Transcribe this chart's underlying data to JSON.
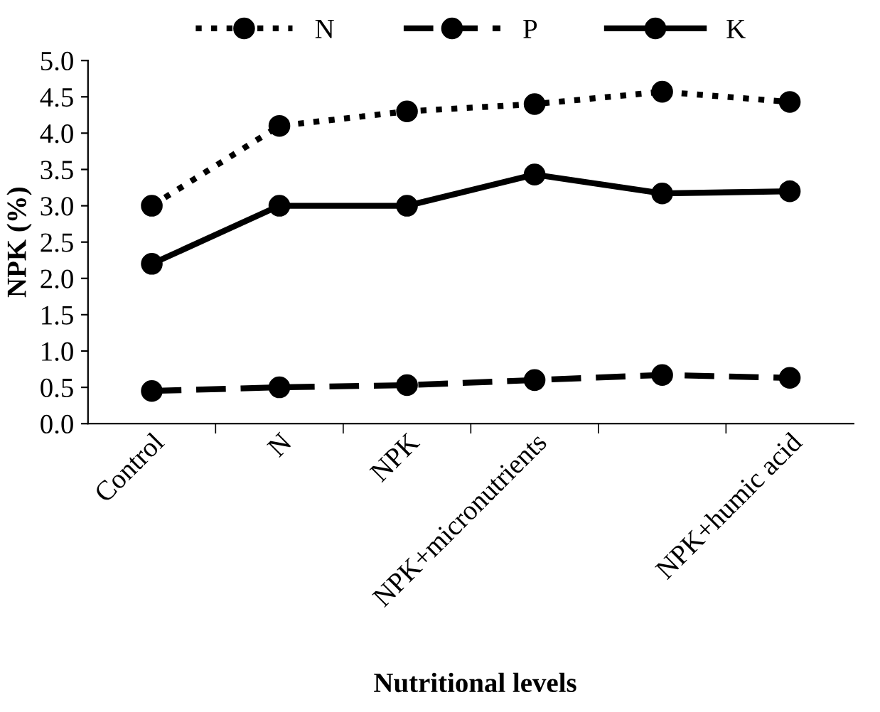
{
  "chart_data": {
    "type": "line",
    "xlabel": "Nutritional levels",
    "ylabel": "NPK (%)",
    "categories": [
      "Control",
      "N",
      "NPK",
      "NPK+micronutrients",
      null,
      "NPK+humic acid"
    ],
    "series": [
      {
        "name": "N",
        "color": "#000000",
        "line_style": "dotted",
        "values": [
          3.0,
          4.1,
          4.3,
          4.4,
          4.57,
          4.43
        ]
      },
      {
        "name": "P",
        "color": "#000000",
        "line_style": "dashed",
        "values": [
          0.45,
          0.5,
          0.53,
          0.6,
          0.67,
          0.63
        ]
      },
      {
        "name": "K",
        "color": "#000000",
        "line_style": "solid",
        "values": [
          2.2,
          3.0,
          3.0,
          3.43,
          3.17,
          3.2
        ]
      }
    ],
    "ylim": [
      0,
      5
    ],
    "yticks": [
      {
        "value": 0,
        "label": "0.0"
      },
      {
        "value": 0.5,
        "label": "0.5"
      },
      {
        "value": 1,
        "label": "1.0"
      },
      {
        "value": 1.5,
        "label": "1.5"
      },
      {
        "value": 2,
        "label": "2.0"
      },
      {
        "value": 2.5,
        "label": "2.5"
      },
      {
        "value": 3,
        "label": "3.0"
      },
      {
        "value": 3.5,
        "label": "3.5"
      },
      {
        "value": 4,
        "label": "4.0"
      },
      {
        "value": 4.5,
        "label": "4.5"
      },
      {
        "value": 5,
        "label": "5.0"
      }
    ],
    "marker": "circle",
    "grid": false,
    "legend": "top"
  }
}
